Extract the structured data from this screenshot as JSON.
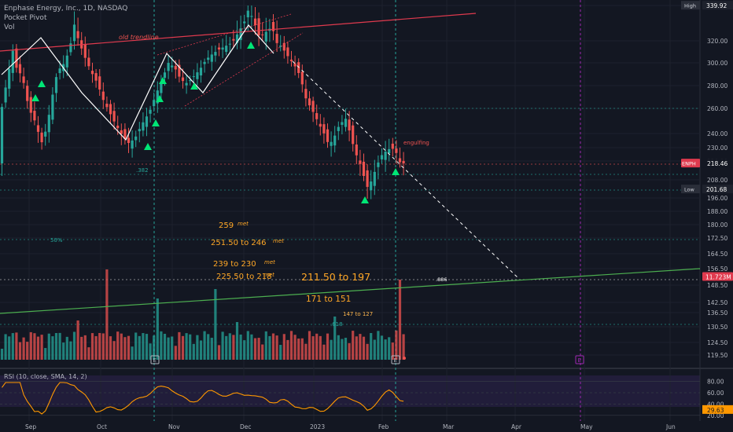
{
  "header": {
    "symbol": "Enphase Energy, Inc., 1D, NASDAQ",
    "indicator1": "Pocket Pivot",
    "indicator2": "Vol"
  },
  "chart_data": {
    "type": "candlestick",
    "currency": "USD",
    "y_ticks": [
      340,
      320,
      300,
      280,
      260,
      240,
      230,
      220,
      208,
      196,
      188,
      180,
      172.5,
      164.5,
      156.5,
      148.5,
      142.5,
      136.5,
      130.5,
      124.5,
      119.5
    ],
    "y_tick_labels": [
      "",
      "320.00",
      "300.00",
      "280.00",
      "260.00",
      "240.00",
      "230.00",
      "220.00",
      "208.00",
      "196.00",
      "188.00",
      "180.00",
      "172.50",
      "164.50",
      "156.50",
      "148.50",
      "142.50",
      "136.50",
      "130.50",
      "124.50",
      "119.50"
    ],
    "x_tick_labels": [
      "Sep",
      "Oct",
      "Nov",
      "Dec",
      "2023",
      "Feb",
      "Mar",
      "Apr",
      "May",
      "Jun"
    ],
    "price_tags": [
      {
        "label": "High",
        "value": "339.92",
        "price": 339.92,
        "kind": "high"
      },
      {
        "label": "ENPH",
        "value": "218.46",
        "price": 218.46,
        "kind": "last"
      },
      {
        "label": "Low",
        "value": "201.68",
        "price": 201.68,
        "kind": "low"
      },
      {
        "label": "",
        "value": "11.723M",
        "price": 152.5,
        "kind": "volume"
      }
    ],
    "annotations": [
      {
        "text": "old trendline",
        "kind": "trend"
      },
      {
        "text": ".382",
        "kind": "fib"
      },
      {
        "text": "50%",
        "kind": "fib"
      },
      {
        "text": ".618",
        "kind": "fib"
      },
      {
        "text": ".886",
        "kind": "fib"
      },
      {
        "text": "engulfing",
        "kind": "note"
      },
      {
        "text": "259",
        "met": "met",
        "kind": "target"
      },
      {
        "text": "251.50 to 246",
        "met": "met",
        "kind": "target"
      },
      {
        "text": "239 to 230",
        "met": "met",
        "kind": "target"
      },
      {
        "text": "225.50 to 218",
        "met": "met",
        "kind": "target"
      },
      {
        "text": "211.50 to 197",
        "kind": "target-big"
      },
      {
        "text": "171 to 151",
        "kind": "target-mid"
      },
      {
        "text": "147 to 127",
        "kind": "target-small"
      }
    ],
    "rsi": {
      "label": "RSI (10, close, SMA, 14, 2)",
      "value": "29.63",
      "value_num": 29.63,
      "y_ticks": [
        80,
        60,
        40,
        20
      ],
      "y_tick_labels": [
        "80.00",
        "60.00",
        "40.00",
        "20.00"
      ]
    },
    "earnings_marker": "E",
    "colors": {
      "up": "#26a69a",
      "down": "#ef5350",
      "background": "#131722",
      "trendline": "#f23645",
      "support": "#4caf50",
      "rsi": "#ff9800",
      "pivot": "#00e676"
    }
  }
}
